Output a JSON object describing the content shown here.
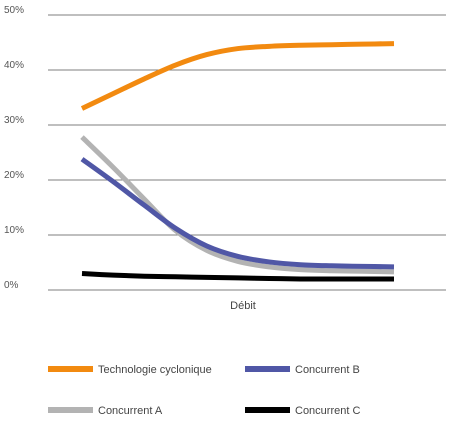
{
  "chart_data": {
    "type": "line",
    "xlabel": "Débit",
    "ylabel": "",
    "ylim": [
      0,
      50
    ],
    "y_ticks": [
      "0%",
      "10%",
      "20%",
      "30%",
      "40%",
      "50%"
    ],
    "y_tick_values": [
      0,
      10,
      20,
      30,
      40,
      50
    ],
    "grid": true,
    "legend_position": "bottom",
    "x": [
      0,
      1,
      2,
      3,
      4,
      5,
      6,
      7,
      8,
      9,
      10
    ],
    "series": [
      {
        "name": "Technologie cyclonique",
        "color": "#F28A10",
        "values": [
          33.0,
          35.7,
          38.4,
          40.9,
          42.8,
          43.9,
          44.3,
          44.5,
          44.6,
          44.7,
          44.8
        ]
      },
      {
        "name": "Concurrent B",
        "color": "#5057A6",
        "values": [
          23.8,
          19.7,
          15.4,
          11.2,
          8.0,
          6.1,
          5.1,
          4.6,
          4.4,
          4.3,
          4.2
        ]
      },
      {
        "name": "Concurrent A",
        "color": "#B3B3B3",
        "values": [
          27.8,
          22.3,
          16.5,
          10.8,
          7.2,
          5.2,
          4.2,
          3.7,
          3.5,
          3.4,
          3.3
        ]
      },
      {
        "name": "Concurrent C",
        "color": "#000000",
        "values": [
          3.0,
          2.7,
          2.5,
          2.4,
          2.3,
          2.2,
          2.1,
          2.0,
          2.0,
          2.0,
          2.0
        ]
      }
    ],
    "legend_order": [
      "Technologie cyclonique",
      "Concurrent B",
      "Concurrent A",
      "Concurrent C"
    ],
    "draw_order": [
      "Concurrent A",
      "Concurrent B",
      "Concurrent C",
      "Technologie cyclonique"
    ]
  }
}
